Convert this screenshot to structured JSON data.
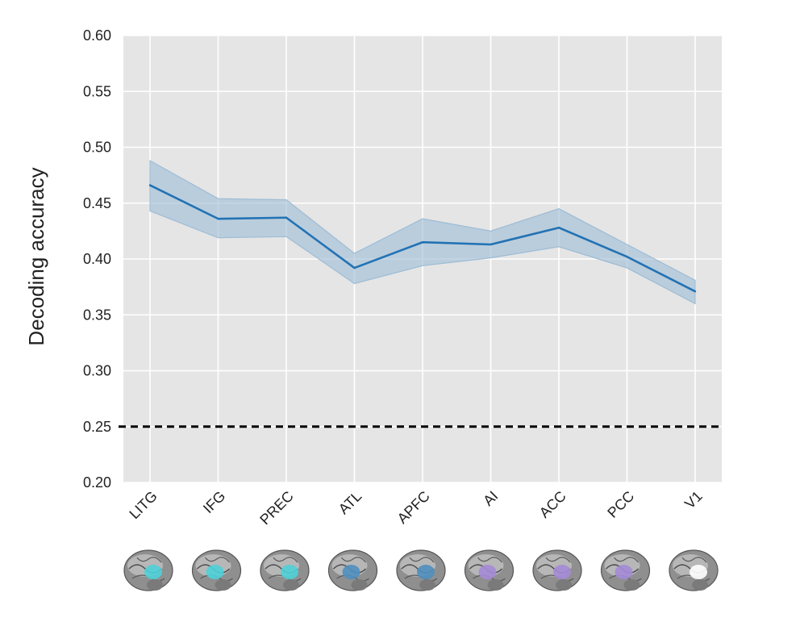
{
  "chart_data": {
    "type": "line",
    "title": "",
    "xlabel": "",
    "ylabel": "Decoding accuracy",
    "categories": [
      "LITG",
      "IFG",
      "PREC",
      "ATL",
      "APFC",
      "AI",
      "ACC",
      "PCC",
      "V1"
    ],
    "series": [
      {
        "values": [
          0.466,
          0.436,
          0.437,
          0.392,
          0.415,
          0.413,
          0.428,
          0.402,
          0.371
        ],
        "lower": [
          0.443,
          0.419,
          0.42,
          0.378,
          0.394,
          0.401,
          0.411,
          0.392,
          0.36
        ],
        "upper": [
          0.488,
          0.454,
          0.453,
          0.405,
          0.436,
          0.425,
          0.445,
          0.413,
          0.381
        ],
        "color": "#2272b4",
        "band_color": "#9cbcd6"
      }
    ],
    "reference_line": {
      "value": 0.25,
      "style": "dashed",
      "color": "#000000"
    },
    "ylim": [
      0.2,
      0.6
    ],
    "yticks": [
      "0.20",
      "0.25",
      "0.30",
      "0.35",
      "0.40",
      "0.45",
      "0.50",
      "0.55",
      "0.60"
    ],
    "grid": true,
    "background": "#e5e5e5",
    "region_images": [
      {
        "region": "LITG",
        "highlight": "#4fd0d8"
      },
      {
        "region": "IFG",
        "highlight": "#4fd0d8"
      },
      {
        "region": "PREC",
        "highlight": "#4fd0d8"
      },
      {
        "region": "ATL",
        "highlight": "#4f8fbf"
      },
      {
        "region": "APFC",
        "highlight": "#4f8fbf"
      },
      {
        "region": "AI",
        "highlight": "#a58bd6"
      },
      {
        "region": "ACC",
        "highlight": "#a58bd6"
      },
      {
        "region": "PCC",
        "highlight": "#a58bd6"
      },
      {
        "region": "V1",
        "highlight": "#ffffff"
      }
    ]
  }
}
